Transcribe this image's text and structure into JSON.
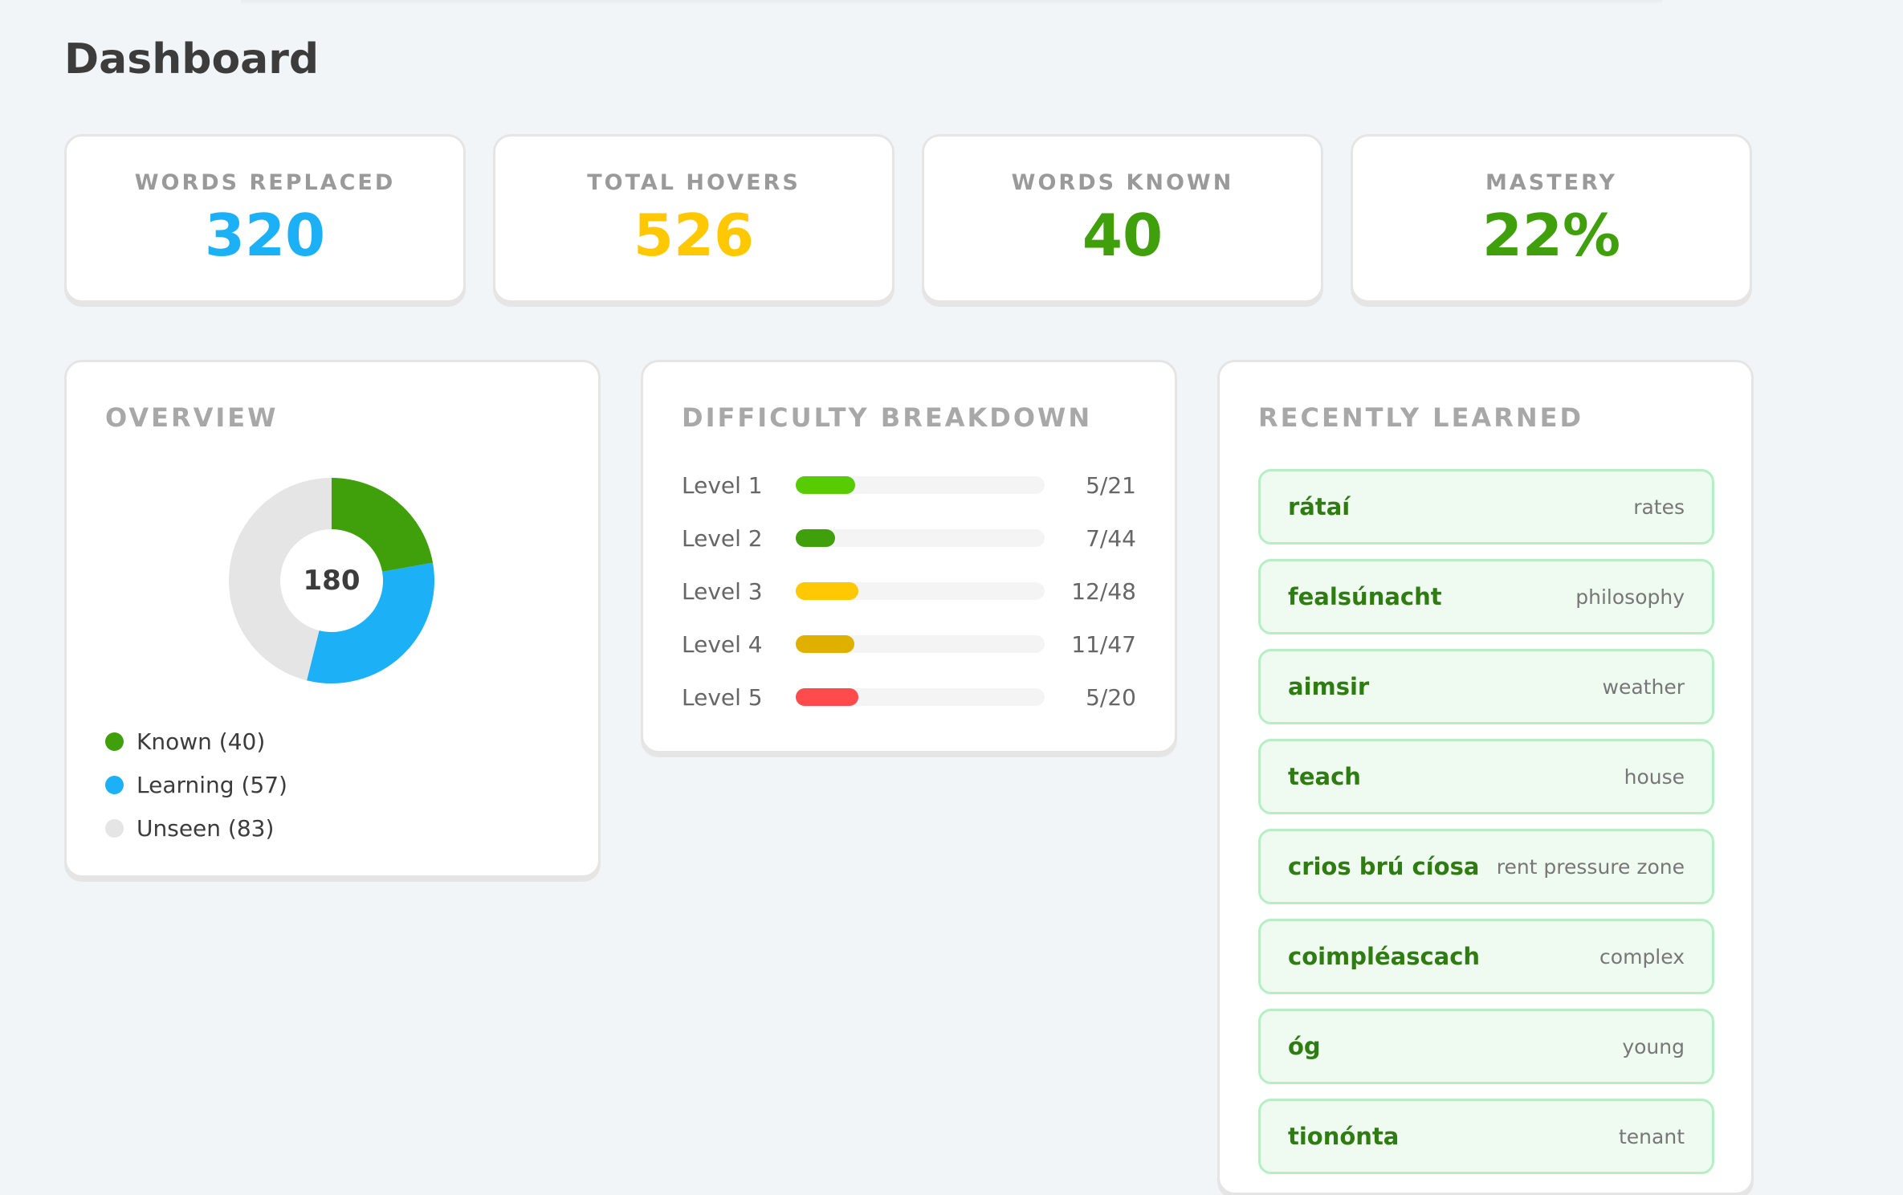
{
  "page": {
    "title": "Dashboard"
  },
  "stats": [
    {
      "label": "WORDS REPLACED",
      "value": "320",
      "color": "#1cb0f6"
    },
    {
      "label": "TOTAL HOVERS",
      "value": "526",
      "color": "#ffc800"
    },
    {
      "label": "WORDS KNOWN",
      "value": "40",
      "color": "#3fa00c"
    },
    {
      "label": "MASTERY",
      "value": "22%",
      "color": "#3fa00c"
    }
  ],
  "overview": {
    "title": "OVERVIEW",
    "total": "180",
    "legend": [
      {
        "label": "Known (40)",
        "color": "#3fa00c"
      },
      {
        "label": "Learning (57)",
        "color": "#1cb0f6"
      },
      {
        "label": "Unseen (83)",
        "color": "#e5e5e5"
      }
    ]
  },
  "chart_data": {
    "type": "pie",
    "variant": "donut",
    "center_label": "180",
    "categories": [
      "Known",
      "Learning",
      "Unseen"
    ],
    "values": [
      40,
      57,
      83
    ],
    "colors": [
      "#3fa00c",
      "#1cb0f6",
      "#e5e5e5"
    ],
    "legend": "bottom-left"
  },
  "difficulty": {
    "title": "DIFFICULTY BREAKDOWN",
    "levels": [
      {
        "label": "Level 1",
        "count": "5/21",
        "known": 5,
        "total": 21,
        "color": "#58cc02"
      },
      {
        "label": "Level 2",
        "count": "7/44",
        "known": 7,
        "total": 44,
        "color": "#3fa00c"
      },
      {
        "label": "Level 3",
        "count": "12/48",
        "known": 12,
        "total": 48,
        "color": "#ffc800"
      },
      {
        "label": "Level 4",
        "count": "11/47",
        "known": 11,
        "total": 47,
        "color": "#e0b000"
      },
      {
        "label": "Level 5",
        "count": "5/20",
        "known": 5,
        "total": 20,
        "color": "#ff4b4b"
      }
    ]
  },
  "recent": {
    "title": "RECENTLY LEARNED",
    "words": [
      {
        "ga": "rátaí",
        "en": "rates"
      },
      {
        "ga": "fealsúnacht",
        "en": "philosophy"
      },
      {
        "ga": "aimsir",
        "en": "weather"
      },
      {
        "ga": "teach",
        "en": "house"
      },
      {
        "ga": "crios brú cíosa",
        "en": "rent pressure zone"
      },
      {
        "ga": "coimpléascach",
        "en": "complex"
      },
      {
        "ga": "óg",
        "en": "young"
      },
      {
        "ga": "tionónta",
        "en": "tenant"
      }
    ]
  }
}
